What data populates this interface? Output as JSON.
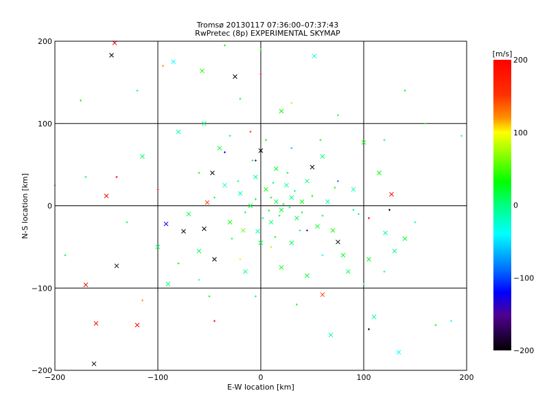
{
  "chart_data": {
    "type": "scatter",
    "title": "Tromsø 20130117 07:36:00–07:37:43",
    "subtitle": "RwPretec (8p) EXPERIMENTAL SKYMAP",
    "xlabel": "E-W location [km]",
    "ylabel": "N-S location [km]",
    "xlim": [
      -200,
      200
    ],
    "ylim": [
      -200,
      200
    ],
    "xticks": [
      "-200",
      "-100",
      "0",
      "100",
      "200"
    ],
    "yticks": [
      "-200",
      "-100",
      "0",
      "100",
      "200"
    ],
    "grid": true,
    "colorbar": {
      "label": "[m/s]",
      "range": [
        -200,
        200
      ],
      "ticks": [
        "200",
        "100",
        "0",
        "-100",
        "-200"
      ]
    },
    "points": [
      [
        -145,
        183,
        -200,
        1
      ],
      [
        -142,
        198,
        200,
        1
      ],
      [
        -25,
        157,
        -200,
        1
      ],
      [
        -170,
        -96,
        200,
        1
      ],
      [
        -160,
        -143,
        200,
        1
      ],
      [
        -120,
        -145,
        200,
        1
      ],
      [
        -162,
        -192,
        -200,
        1
      ],
      [
        127,
        14,
        200,
        1
      ],
      [
        -92,
        -22,
        -130,
        1
      ],
      [
        -45,
        -65,
        -200,
        1
      ],
      [
        -47,
        40,
        -200,
        1
      ],
      [
        -75,
        -31,
        -200,
        1
      ],
      [
        -55,
        -28,
        -200,
        1
      ],
      [
        -52,
        4,
        180,
        1
      ],
      [
        50,
        47,
        -200,
        1
      ],
      [
        0,
        67,
        -200,
        1
      ],
      [
        75,
        -44,
        -200,
        1
      ],
      [
        60,
        -108,
        180,
        1
      ],
      [
        -150,
        12,
        200,
        1
      ],
      [
        -85,
        175,
        -40,
        1
      ],
      [
        52,
        182,
        -30,
        1
      ],
      [
        -140,
        -73,
        -190,
        1
      ],
      [
        -57,
        164,
        40,
        1
      ],
      [
        100,
        77,
        30,
        1
      ],
      [
        110,
        -135,
        -10,
        1
      ],
      [
        68,
        -157,
        -20,
        1
      ],
      [
        134,
        -178,
        -40,
        1
      ],
      [
        121,
        -33,
        -10,
        1
      ],
      [
        -17,
        -30,
        60,
        1
      ],
      [
        -3,
        -31,
        -20,
        1
      ],
      [
        15,
        5,
        10,
        1
      ],
      [
        20,
        -5,
        20,
        1
      ],
      [
        30,
        10,
        0,
        1
      ],
      [
        5,
        20,
        30,
        1
      ],
      [
        35,
        -15,
        10,
        1
      ],
      [
        -10,
        0,
        20,
        1
      ],
      [
        25,
        25,
        -10,
        1
      ],
      [
        40,
        5,
        30,
        1
      ],
      [
        10,
        -20,
        0,
        1
      ],
      [
        -20,
        15,
        -20,
        1
      ],
      [
        55,
        -25,
        20,
        1
      ],
      [
        0,
        -45,
        10,
        1
      ],
      [
        45,
        30,
        0,
        1
      ],
      [
        -30,
        -20,
        30,
        1
      ],
      [
        65,
        5,
        -10,
        1
      ],
      [
        15,
        45,
        20,
        1
      ],
      [
        -5,
        35,
        0,
        1
      ],
      [
        30,
        -45,
        10,
        1
      ],
      [
        70,
        -30,
        30,
        1
      ],
      [
        -35,
        25,
        -30,
        1
      ],
      [
        80,
        -60,
        20,
        1
      ],
      [
        -60,
        -55,
        10,
        1
      ],
      [
        60,
        60,
        0,
        1
      ],
      [
        -40,
        70,
        20,
        1
      ],
      [
        90,
        20,
        -20,
        1
      ],
      [
        -70,
        -10,
        10,
        1
      ],
      [
        20,
        -75,
        30,
        1
      ],
      [
        -15,
        -80,
        0,
        1
      ],
      [
        45,
        -85,
        20,
        1
      ],
      [
        85,
        -80,
        10,
        1
      ],
      [
        -55,
        100,
        0,
        1
      ],
      [
        20,
        115,
        30,
        1
      ],
      [
        -80,
        90,
        -10,
        1
      ],
      [
        105,
        -65,
        20,
        1
      ],
      [
        -100,
        -50,
        10,
        1
      ],
      [
        130,
        -55,
        0,
        1
      ],
      [
        140,
        -40,
        20,
        1
      ],
      [
        115,
        40,
        30,
        1
      ],
      [
        -115,
        60,
        10,
        1
      ],
      [
        -90,
        -95,
        0,
        1
      ],
      [
        10,
        10,
        20,
        0
      ],
      [
        22,
        2,
        30,
        0
      ],
      [
        18,
        -12,
        10,
        0
      ],
      [
        33,
        18,
        0,
        0
      ],
      [
        -5,
        8,
        20,
        0
      ],
      [
        8,
        -6,
        30,
        0
      ],
      [
        28,
        -2,
        0,
        0
      ],
      [
        12,
        28,
        10,
        0
      ],
      [
        40,
        -8,
        20,
        0
      ],
      [
        2,
        -15,
        0,
        0
      ],
      [
        -15,
        -8,
        10,
        0
      ],
      [
        50,
        12,
        30,
        0
      ],
      [
        26,
        40,
        20,
        0
      ],
      [
        -22,
        30,
        0,
        0
      ],
      [
        60,
        -12,
        10,
        0
      ],
      [
        -8,
        55,
        20,
        0
      ],
      [
        38,
        -30,
        0,
        0
      ],
      [
        14,
        -38,
        30,
        0
      ],
      [
        -28,
        -40,
        10,
        0
      ],
      [
        72,
        22,
        20,
        0
      ],
      [
        -45,
        10,
        0,
        0
      ],
      [
        5,
        80,
        30,
        0
      ],
      [
        58,
        80,
        20,
        0
      ],
      [
        -30,
        85,
        10,
        0
      ],
      [
        95,
        -10,
        0,
        0
      ],
      [
        -60,
        40,
        20,
        0
      ],
      [
        100,
        -95,
        10,
        0
      ],
      [
        -5,
        -110,
        0,
        0
      ],
      [
        35,
        -120,
        20,
        0
      ],
      [
        -50,
        -110,
        30,
        0
      ],
      [
        75,
        110,
        10,
        0
      ],
      [
        -20,
        130,
        20,
        0
      ],
      [
        120,
        80,
        0,
        0
      ],
      [
        -130,
        -20,
        10,
        0
      ],
      [
        150,
        -20,
        -20,
        0
      ],
      [
        -170,
        35,
        10,
        0
      ],
      [
        160,
        100,
        20,
        0
      ],
      [
        -120,
        140,
        0,
        0
      ],
      [
        140,
        140,
        30,
        0
      ],
      [
        -190,
        -60,
        10,
        0
      ],
      [
        0,
        160,
        200,
        0
      ],
      [
        -95,
        170,
        150,
        0
      ],
      [
        30,
        125,
        120,
        0
      ],
      [
        -10,
        90,
        180,
        0
      ],
      [
        -35,
        65,
        -120,
        0
      ],
      [
        -5,
        55,
        -150,
        0
      ],
      [
        45,
        -30,
        -160,
        0
      ],
      [
        -100,
        20,
        200,
        0
      ],
      [
        -140,
        35,
        200,
        0
      ],
      [
        105,
        -15,
        200,
        0
      ],
      [
        -115,
        -115,
        150,
        0
      ],
      [
        -45,
        -140,
        200,
        0
      ],
      [
        105,
        -150,
        -200,
        0
      ],
      [
        125,
        -5,
        -200,
        0
      ],
      [
        10,
        -50,
        120,
        0
      ],
      [
        -20,
        -65,
        110,
        0
      ],
      [
        60,
        -60,
        -40,
        0
      ],
      [
        30,
        70,
        -60,
        0
      ],
      [
        75,
        30,
        -90,
        0
      ],
      [
        -60,
        -90,
        -40,
        0
      ],
      [
        185,
        -140,
        -40,
        0
      ],
      [
        170,
        -145,
        30,
        0
      ],
      [
        195,
        85,
        -30,
        0
      ],
      [
        -175,
        128,
        30,
        0
      ],
      [
        -200,
        25,
        10,
        0
      ],
      [
        90,
        -5,
        0,
        0
      ],
      [
        -80,
        -70,
        20,
        0
      ],
      [
        0,
        190,
        30,
        0
      ],
      [
        -35,
        195,
        20,
        0
      ],
      [
        120,
        -80,
        -10,
        0
      ]
    ]
  }
}
